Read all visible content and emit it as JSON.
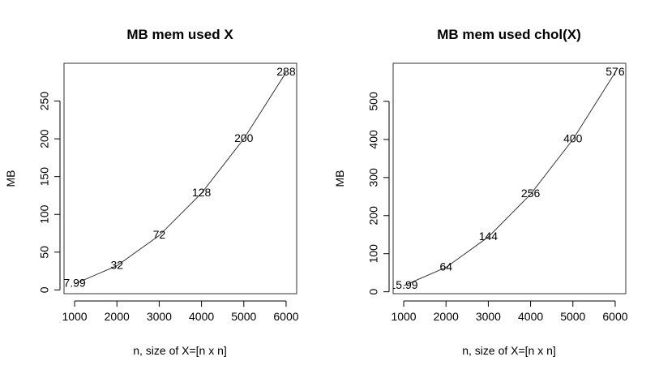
{
  "chart_data": [
    {
      "type": "line",
      "title": "MB mem used X",
      "xlabel": "n, size of X=[n x n]",
      "ylabel": "MB",
      "x": [
        1000,
        2000,
        3000,
        4000,
        5000,
        6000
      ],
      "series": [
        {
          "values": [
            7.99,
            32,
            72,
            128,
            200,
            288
          ]
        }
      ],
      "data_labels": [
        "7.99",
        "32",
        "72",
        "128",
        "200",
        "288"
      ],
      "xlim": [
        750,
        6250
      ],
      "ylim": [
        -5,
        300
      ],
      "x_ticks": [
        1000,
        2000,
        3000,
        4000,
        5000,
        6000
      ],
      "x_tick_labels": [
        "1000",
        "2000",
        "3000",
        "4000",
        "5000",
        "6000"
      ],
      "y_ticks": [
        0,
        50,
        100,
        150,
        200,
        250
      ],
      "y_tick_labels": [
        "0",
        "50",
        "100",
        "150",
        "200",
        "250"
      ],
      "grid": false,
      "legend": "none"
    },
    {
      "type": "line",
      "title": "MB mem used chol(X)",
      "xlabel": "n, size of X=[n x n]",
      "ylabel": "MB",
      "x": [
        1000,
        2000,
        3000,
        4000,
        5000,
        6000
      ],
      "series": [
        {
          "values": [
            15.99,
            64,
            144,
            256,
            400,
            576
          ]
        }
      ],
      "data_labels": [
        "15.99",
        "64",
        "144",
        "256",
        "400",
        "576"
      ],
      "xlim": [
        750,
        6250
      ],
      "ylim": [
        -5,
        600
      ],
      "x_ticks": [
        1000,
        2000,
        3000,
        4000,
        5000,
        6000
      ],
      "x_tick_labels": [
        "1000",
        "2000",
        "3000",
        "4000",
        "5000",
        "6000"
      ],
      "y_ticks": [
        0,
        100,
        200,
        300,
        400,
        500
      ],
      "y_tick_labels": [
        "0",
        "100",
        "200",
        "300",
        "400",
        "500"
      ],
      "grid": false,
      "legend": "none"
    }
  ]
}
